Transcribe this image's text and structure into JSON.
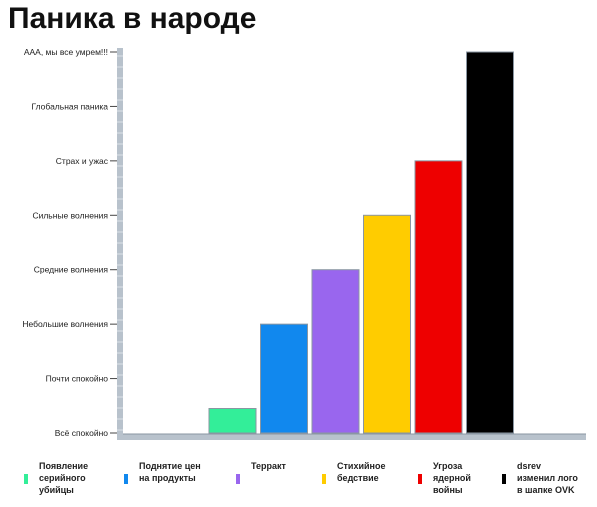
{
  "chart_data": {
    "type": "bar",
    "title": "Паника в народе",
    "xlabel": "",
    "ylabel": "",
    "y_levels": [
      "Всё спокойно",
      "Почти спокойно",
      "Небольшие волнения",
      "Средние волнения",
      "Сильные волнения",
      "Страх и ужас",
      "Глобальная паника",
      "ААА, мы все умрем!!!"
    ],
    "ylim": [
      0,
      7
    ],
    "grid": false,
    "legend_position": "bottom",
    "categories": [
      "Появление серийного убийцы",
      "Поднятие цен на продукты",
      "Терракт",
      "Стихийное бедствие",
      "Угроза ядерной войны",
      "dsrev изменил лого в шапке OVK"
    ],
    "legend_lines": [
      [
        "Появление",
        "серийного",
        "убийцы"
      ],
      [
        "Поднятие цен",
        "на продукты"
      ],
      [
        "Терракт"
      ],
      [
        "Стихийное",
        "бедствие"
      ],
      [
        "Угроза",
        "ядерной",
        "войны"
      ],
      [
        "dsrev",
        "изменил лого",
        "в шапке OVK"
      ]
    ],
    "values": [
      0.45,
      2.0,
      3.0,
      4.0,
      5.0,
      7.0
    ],
    "colors": [
      "#33ee99",
      "#1188ee",
      "#9966ee",
      "#ffcc00",
      "#ee0000",
      "#000000"
    ]
  }
}
